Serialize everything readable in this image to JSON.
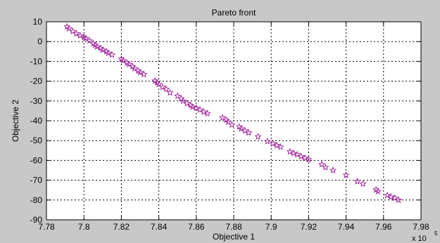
{
  "chart_data": {
    "type": "scatter",
    "title": "Pareto front",
    "xlabel": "Objective 1",
    "ylabel": "Objective 2",
    "x_multiplier_base": "x 10",
    "x_multiplier_exponent": "5",
    "xlim": [
      7.78,
      7.98
    ],
    "ylim": [
      -90,
      10
    ],
    "grid": true,
    "marker": "star",
    "marker_color": "#a0209a",
    "axes_background": "#ffffff",
    "figure_background": "#c8c8c8",
    "x_ticks": [
      7.78,
      7.8,
      7.82,
      7.84,
      7.86,
      7.88,
      7.9,
      7.92,
      7.94,
      7.96,
      7.98
    ],
    "x_tick_labels": [
      "7.78",
      "7.8",
      "7.82",
      "7.84",
      "7.86",
      "7.88",
      "7.9",
      "7.92",
      "7.94",
      "7.96",
      "7.98"
    ],
    "y_ticks": [
      10,
      0,
      -10,
      -20,
      -30,
      -40,
      -50,
      -60,
      -70,
      -80,
      -90
    ],
    "y_tick_labels": [
      "10",
      "0",
      "-10",
      "-20",
      "-30",
      "-40",
      "-50",
      "-60",
      "-70",
      "-80",
      "-90"
    ],
    "points": [
      [
        7.791,
        7.5
      ],
      [
        7.792,
        6.5
      ],
      [
        7.794,
        5.2
      ],
      [
        7.796,
        4.0
      ],
      [
        7.798,
        3.0
      ],
      [
        7.8,
        2.2
      ],
      [
        7.801,
        1.6
      ],
      [
        7.803,
        0.4
      ],
      [
        7.805,
        -1.0
      ],
      [
        7.806,
        -1.8
      ],
      [
        7.807,
        -2.6
      ],
      [
        7.809,
        -3.4
      ],
      [
        7.81,
        -4.2
      ],
      [
        7.812,
        -5.0
      ],
      [
        7.813,
        -5.8
      ],
      [
        7.815,
        -6.7
      ],
      [
        7.82,
        -8.8
      ],
      [
        7.821,
        -9.6
      ],
      [
        7.823,
        -10.8
      ],
      [
        7.824,
        -11.5
      ],
      [
        7.826,
        -12.6
      ],
      [
        7.827,
        -13.6
      ],
      [
        7.829,
        -14.8
      ],
      [
        7.83,
        -15.6
      ],
      [
        7.832,
        -16.5
      ],
      [
        7.838,
        -19.8
      ],
      [
        7.839,
        -20.8
      ],
      [
        7.84,
        -21.6
      ],
      [
        7.842,
        -23.0
      ],
      [
        7.844,
        -24.0
      ],
      [
        7.846,
        -25.8
      ],
      [
        7.85,
        -27.5
      ],
      [
        7.852,
        -28.8
      ],
      [
        7.853,
        -30.0
      ],
      [
        7.855,
        -31.2
      ],
      [
        7.857,
        -32.2
      ],
      [
        7.858,
        -33.0
      ],
      [
        7.86,
        -33.6
      ],
      [
        7.862,
        -34.5
      ],
      [
        7.864,
        -35.5
      ],
      [
        7.866,
        -36.3
      ],
      [
        7.874,
        -38.4
      ],
      [
        7.876,
        -39.6
      ],
      [
        7.877,
        -40.6
      ],
      [
        7.879,
        -42.0
      ],
      [
        7.883,
        -43.0
      ],
      [
        7.884,
        -44.0
      ],
      [
        7.886,
        -45.0
      ],
      [
        7.888,
        -46.0
      ],
      [
        7.893,
        -48.0
      ],
      [
        7.898,
        -50.4
      ],
      [
        7.901,
        -51.5
      ],
      [
        7.903,
        -52.4
      ],
      [
        7.905,
        -53.2
      ],
      [
        7.91,
        -55.6
      ],
      [
        7.912,
        -56.4
      ],
      [
        7.914,
        -57.0
      ],
      [
        7.916,
        -58.0
      ],
      [
        7.918,
        -58.8
      ],
      [
        7.92,
        -59.5
      ],
      [
        7.927,
        -62.0
      ],
      [
        7.929,
        -63.5
      ],
      [
        7.933,
        -65.0
      ],
      [
        7.94,
        -67.4
      ],
      [
        7.946,
        -70.6
      ],
      [
        7.949,
        -71.8
      ],
      [
        7.956,
        -74.8
      ],
      [
        7.957,
        -75.6
      ],
      [
        7.962,
        -77.6
      ],
      [
        7.964,
        -78.4
      ],
      [
        7.966,
        -79.0
      ],
      [
        7.968,
        -80.0
      ]
    ]
  }
}
